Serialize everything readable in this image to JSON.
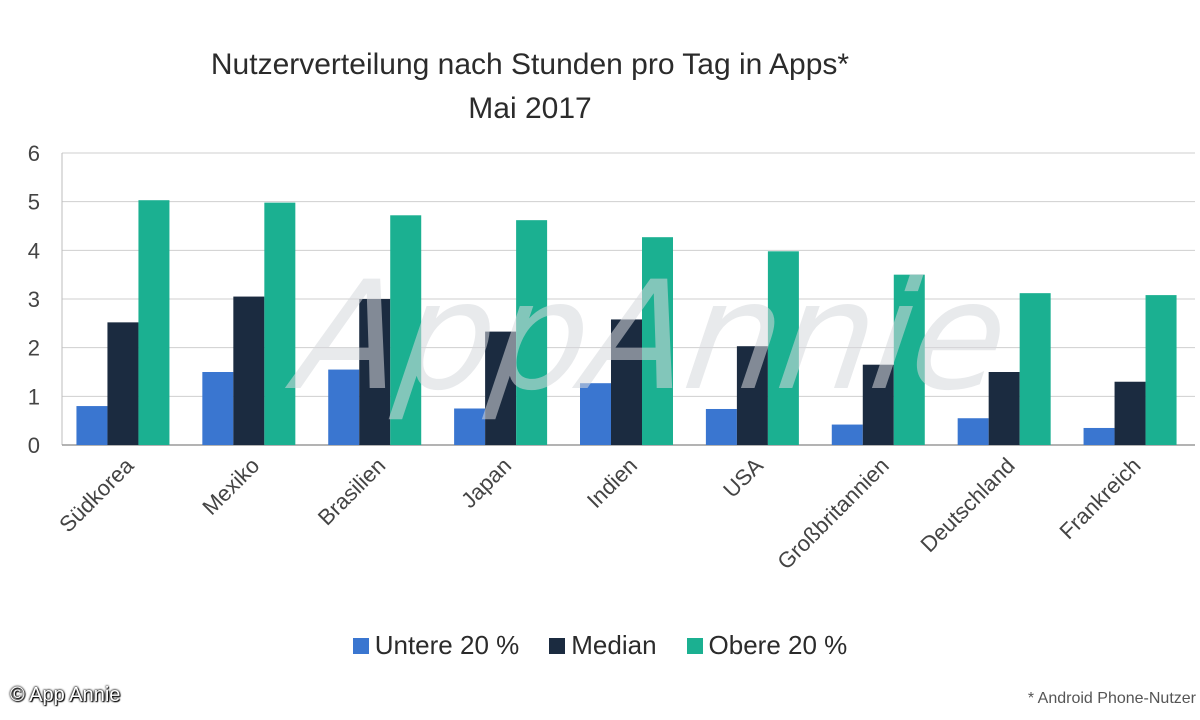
{
  "chart_data": {
    "type": "bar",
    "title": "Nutzerverteilung nach Stunden pro Tag in Apps*",
    "subtitle": "Mai 2017",
    "categories": [
      "Südkorea",
      "Mexiko",
      "Brasilien",
      "Japan",
      "Indien",
      "USA",
      "Großbritannien",
      "Deutschland",
      "Frankreich"
    ],
    "series": [
      {
        "name": "Untere 20 %",
        "color": "#3a76d0",
        "values": [
          0.8,
          1.5,
          1.55,
          0.75,
          1.27,
          0.74,
          0.42,
          0.55,
          0.35
        ]
      },
      {
        "name": "Median",
        "color": "#1b2b40",
        "values": [
          2.52,
          3.05,
          3.0,
          2.33,
          2.58,
          2.03,
          1.65,
          1.5,
          1.3
        ]
      },
      {
        "name": "Obere 20 %",
        "color": "#1bb091",
        "values": [
          5.03,
          4.98,
          4.72,
          4.62,
          4.27,
          3.98,
          3.5,
          3.12,
          3.08
        ]
      }
    ],
    "ylim": [
      0,
      6
    ],
    "yticks": [
      0,
      1,
      2,
      3,
      4,
      5,
      6
    ],
    "grid": true,
    "legend_position": "bottom"
  },
  "watermark": "AppAnnie",
  "copyright": "© App Annie",
  "footnote": "* Android Phone-Nutzer"
}
